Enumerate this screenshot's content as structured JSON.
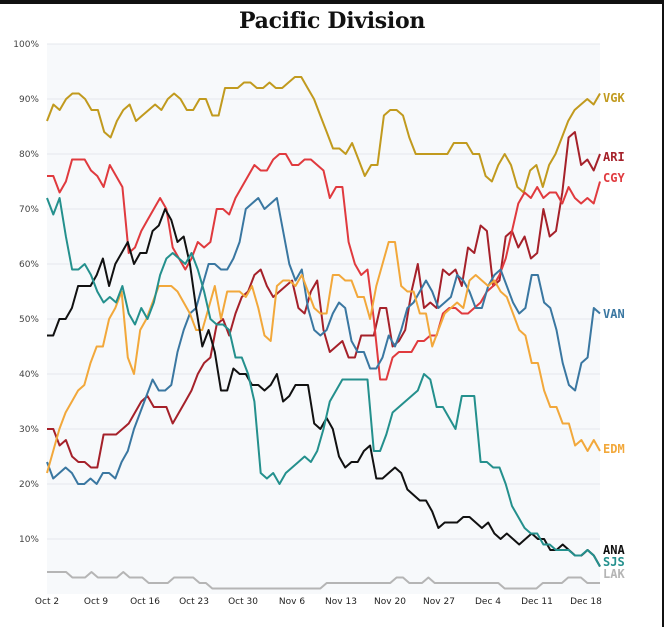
{
  "chart_data": {
    "type": "line",
    "title": "Pacific Division",
    "xlabel": "",
    "ylabel": "",
    "ylim": [
      0,
      100
    ],
    "yticks": [
      10,
      20,
      30,
      40,
      50,
      60,
      70,
      80,
      90,
      100
    ],
    "ytick_labels": [
      "10%",
      "20%",
      "30%",
      "40%",
      "50%",
      "60%",
      "70%",
      "80%",
      "90%",
      "100%"
    ],
    "xtick_labels": [
      "Oct 2",
      "Oct 9",
      "Oct 16",
      "Oct 23",
      "Oct 30",
      "Nov 6",
      "Nov 13",
      "Nov 20",
      "Nov 27",
      "Dec 4",
      "Dec 11",
      "Dec 18"
    ],
    "x_start": "Oct 2",
    "x_end": "Dec 22",
    "grid": true,
    "legend": "end-of-line labels (right)",
    "series": [
      {
        "name": "VGK",
        "color": "#c19a1e",
        "values": [
          86,
          89,
          88,
          90,
          91,
          91,
          90,
          88,
          88,
          84,
          83,
          86,
          88,
          89,
          86,
          87,
          88,
          89,
          88,
          90,
          91,
          90,
          88,
          88,
          90,
          90,
          87,
          87,
          92,
          92,
          92,
          93,
          93,
          92,
          92,
          93,
          92,
          92,
          93,
          94,
          94,
          92,
          90,
          87,
          84,
          81,
          81,
          80,
          82,
          79,
          76,
          78,
          78,
          87,
          88,
          88,
          87,
          83,
          80,
          80,
          80,
          80,
          80,
          80,
          82,
          82,
          82,
          80,
          80,
          76,
          75,
          78,
          80,
          78,
          74,
          73,
          77,
          78,
          74,
          78,
          80,
          83,
          86,
          88,
          89,
          90,
          89,
          91
        ]
      },
      {
        "name": "ARI",
        "color": "#a5212a",
        "values": [
          30,
          30,
          27,
          28,
          25,
          24,
          24,
          23,
          23,
          29,
          29,
          29,
          30,
          31,
          33,
          35,
          36,
          34,
          34,
          34,
          31,
          33,
          35,
          37,
          40,
          42,
          43,
          49,
          50,
          47,
          51,
          54,
          55,
          58,
          59,
          56,
          54,
          55,
          56,
          57,
          52,
          51,
          55,
          57,
          48,
          44,
          45,
          46,
          43,
          43,
          47,
          47,
          47,
          52,
          52,
          45,
          46,
          48,
          55,
          60,
          52,
          53,
          52,
          59,
          58,
          59,
          56,
          63,
          62,
          67,
          66,
          56,
          57,
          65,
          66,
          63,
          65,
          61,
          62,
          70,
          65,
          66,
          73,
          83,
          84,
          78,
          79,
          77,
          80
        ]
      },
      {
        "name": "CGY",
        "color": "#e03a3e",
        "values": [
          76,
          76,
          73,
          75,
          79,
          79,
          79,
          77,
          76,
          74,
          78,
          76,
          74,
          62,
          63,
          66,
          68,
          70,
          72,
          70,
          63,
          61,
          59,
          61,
          64,
          63,
          64,
          70,
          70,
          69,
          72,
          74,
          76,
          78,
          77,
          77,
          79,
          80,
          80,
          78,
          78,
          79,
          79,
          78,
          77,
          72,
          74,
          74,
          64,
          60,
          58,
          59,
          50,
          39,
          39,
          43,
          44,
          44,
          44,
          46,
          46,
          47,
          47,
          51,
          52,
          52,
          51,
          51,
          52,
          53,
          55,
          56,
          58,
          61,
          66,
          71,
          73,
          72,
          74,
          72,
          73,
          73,
          71,
          74,
          72,
          71,
          72,
          71,
          75
        ]
      },
      {
        "name": "VAN",
        "color": "#3a77a1",
        "values": [
          24,
          21,
          22,
          23,
          22,
          20,
          20,
          21,
          20,
          22,
          22,
          21,
          24,
          26,
          30,
          33,
          36,
          39,
          37,
          37,
          38,
          44,
          48,
          51,
          52,
          56,
          60,
          60,
          59,
          59,
          61,
          64,
          70,
          71,
          72,
          70,
          71,
          72,
          66,
          60,
          57,
          59,
          52,
          48,
          47,
          48,
          51,
          53,
          52,
          46,
          44,
          44,
          41,
          41,
          43,
          47,
          45,
          48,
          52,
          53,
          55,
          57,
          55,
          52,
          53,
          54,
          58,
          57,
          55,
          52,
          52,
          56,
          58,
          59,
          56,
          53,
          51,
          52,
          58,
          58,
          53,
          52,
          48,
          42,
          38,
          37,
          42,
          43,
          52,
          51
        ]
      },
      {
        "name": "EDM",
        "color": "#f2a83b",
        "values": [
          22,
          26,
          30,
          33,
          35,
          37,
          38,
          42,
          45,
          45,
          50,
          52,
          55,
          43,
          40,
          48,
          50,
          53,
          56,
          56,
          56,
          55,
          53,
          51,
          48,
          48,
          52,
          56,
          50,
          55,
          55,
          55,
          54,
          56,
          52,
          47,
          46,
          56,
          57,
          57,
          56,
          58,
          55,
          52,
          51,
          51,
          58,
          58,
          57,
          57,
          54,
          54,
          50,
          56,
          60,
          64,
          64,
          56,
          55,
          55,
          51,
          51,
          45,
          48,
          51,
          52,
          53,
          52,
          57,
          58,
          57,
          56,
          57,
          55,
          54,
          51,
          48,
          47,
          42,
          42,
          37,
          34,
          34,
          31,
          31,
          27,
          28,
          26,
          28,
          26
        ]
      },
      {
        "name": "ANA",
        "color": "#111111",
        "values": [
          47,
          47,
          50,
          50,
          52,
          56,
          56,
          56,
          58,
          61,
          56,
          60,
          62,
          64,
          60,
          62,
          62,
          66,
          67,
          70,
          68,
          64,
          65,
          60,
          52,
          45,
          48,
          44,
          37,
          37,
          41,
          40,
          40,
          38,
          38,
          37,
          38,
          40,
          35,
          36,
          38,
          38,
          38,
          31,
          30,
          32,
          30,
          25,
          23,
          24,
          24,
          26,
          27,
          21,
          21,
          22,
          23,
          22,
          19,
          18,
          17,
          17,
          15,
          12,
          13,
          13,
          13,
          14,
          14,
          13,
          12,
          13,
          11,
          10,
          11,
          10,
          9,
          10,
          11,
          10,
          10,
          8,
          8,
          9,
          8,
          7,
          7,
          8,
          7,
          5
        ]
      },
      {
        "name": "SJS",
        "color": "#24908d",
        "values": [
          72,
          69,
          72,
          65,
          59,
          59,
          60,
          58,
          55,
          53,
          54,
          53,
          56,
          51,
          49,
          52,
          50,
          53,
          58,
          61,
          62,
          61,
          60,
          62,
          59,
          55,
          50,
          49,
          49,
          48,
          43,
          43,
          40,
          35,
          22,
          21,
          22,
          20,
          22,
          23,
          24,
          25,
          24,
          26,
          30,
          35,
          37,
          39,
          39,
          39,
          39,
          39,
          26,
          26,
          29,
          33,
          34,
          35,
          36,
          37,
          40,
          39,
          34,
          34,
          32,
          30,
          36,
          36,
          36,
          24,
          24,
          23,
          23,
          20,
          16,
          14,
          12,
          11,
          11,
          9,
          9,
          8,
          8,
          8,
          7,
          7,
          8,
          7,
          5
        ]
      },
      {
        "name": "LAK",
        "color": "#b5b5b5",
        "values": [
          4,
          4,
          4,
          4,
          3,
          3,
          3,
          4,
          3,
          3,
          3,
          3,
          4,
          3,
          3,
          3,
          2,
          2,
          2,
          2,
          3,
          3,
          3,
          3,
          2,
          2,
          1,
          1,
          1,
          1,
          1,
          1,
          1,
          1,
          1,
          1,
          1,
          1,
          1,
          1,
          1,
          1,
          1,
          1,
          2,
          2,
          2,
          2,
          2,
          2,
          2,
          2,
          2,
          2,
          2,
          3,
          3,
          2,
          2,
          2,
          3,
          2,
          2,
          2,
          2,
          2,
          2,
          2,
          2,
          2,
          2,
          2,
          1,
          1,
          1,
          1,
          1,
          1,
          2,
          2,
          2,
          2,
          3,
          3,
          3,
          2,
          2,
          2
        ]
      }
    ],
    "end_labels": [
      "VGK",
      "ARI",
      "CGY",
      "VAN",
      "EDM",
      "ANA",
      "SJS",
      "LAK"
    ]
  }
}
